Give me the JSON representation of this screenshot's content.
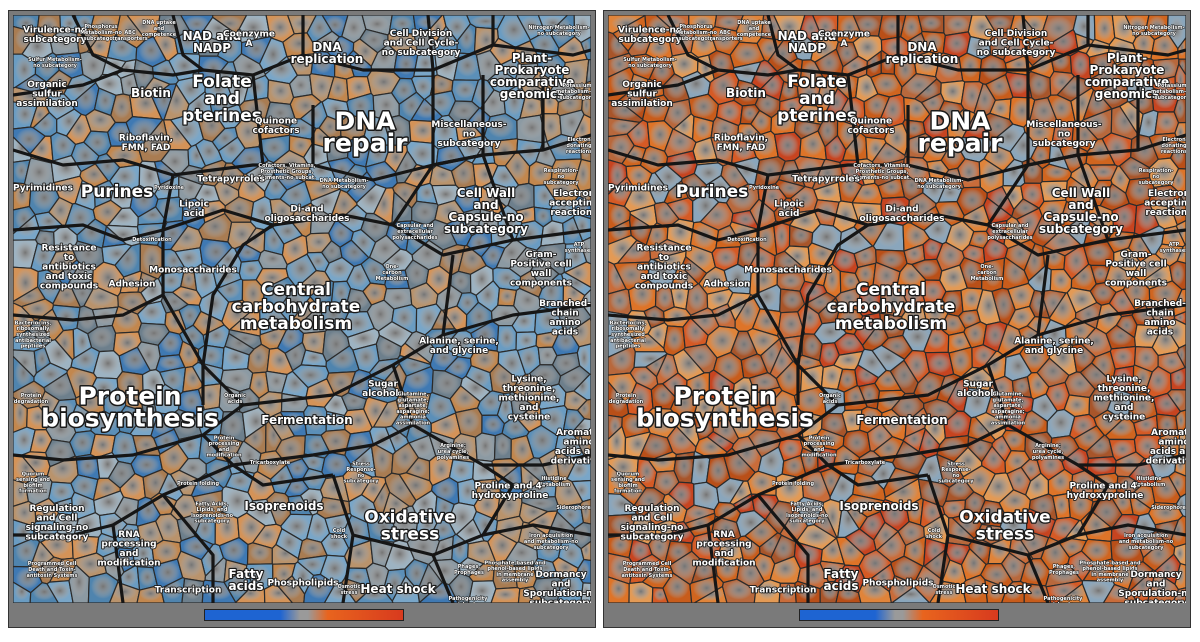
{
  "panels": [
    {
      "id": "left",
      "theme": "blue-orange",
      "legend": "blue-grey-orange"
    },
    {
      "id": "right",
      "theme": "orange-red",
      "legend": "blue-grey-orange"
    }
  ],
  "legend_colors": {
    "blue": "#1e64d2",
    "grey": "#9a9a9a",
    "orange": "#e8641e",
    "red": "#d83a1e"
  },
  "cell_colors": {
    "blue-orange": [
      "#5b8fb8",
      "#6a9cc2",
      "#4f84ae",
      "#79a6c8",
      "#a97c52",
      "#c2874e",
      "#b9936c",
      "#8c9aa3",
      "#6d7f8c",
      "#3f79b3",
      "#d49358",
      "#9db3c2"
    ],
    "orange-red": [
      "#d0651f",
      "#c85c1b",
      "#de7428",
      "#b94f18",
      "#e0843a",
      "#c96c3a",
      "#a8552a",
      "#d55a25",
      "#c74420",
      "#8aa6bc",
      "#e39a55",
      "#b8683c"
    ]
  },
  "labels": [
    {
      "id": "virulence",
      "lines": [
        "Virulence-no",
        "subcategory"
      ],
      "size": "s"
    },
    {
      "id": "phosphorus",
      "lines": [
        "Phosphorus",
        "Metabolism-no",
        "subcategory"
      ],
      "size": "xs"
    },
    {
      "id": "abc-transporters",
      "lines": [
        "ABC",
        "transporters"
      ],
      "size": "xs"
    },
    {
      "id": "dna-uptake",
      "lines": [
        "DNA uptake",
        "and",
        "competence"
      ],
      "size": "xs"
    },
    {
      "id": "nitrogen",
      "lines": [
        "Nitrogen Metabolism-",
        "no subcategory"
      ],
      "size": "xs"
    },
    {
      "id": "sulfur-metabolism",
      "lines": [
        "Sulfur Metabolism-",
        "no subcategory"
      ],
      "size": "xs"
    },
    {
      "id": "nad-nadp",
      "lines": [
        "NAD and",
        "NADP"
      ],
      "size": "m"
    },
    {
      "id": "coenzyme-a",
      "lines": [
        "Coenzyme",
        "A"
      ],
      "size": "s"
    },
    {
      "id": "dna-replication",
      "lines": [
        "DNA",
        "replication"
      ],
      "size": "m"
    },
    {
      "id": "cell-division",
      "lines": [
        "Cell Division",
        "and Cell Cycle-",
        "no subcategory"
      ],
      "size": "s"
    },
    {
      "id": "plant-prokaryote",
      "lines": [
        "Plant-",
        "Prokaryote",
        "comparative",
        "genomics"
      ],
      "size": "m"
    },
    {
      "id": "potassium",
      "lines": [
        "Potassium",
        "metabolism-no",
        "subcategory"
      ],
      "size": "xs"
    },
    {
      "id": "organic-sulfur",
      "lines": [
        "Organic",
        "sulfur",
        "assimilation"
      ],
      "size": "s"
    },
    {
      "id": "biotin",
      "lines": [
        "Biotin"
      ],
      "size": "m"
    },
    {
      "id": "folate",
      "lines": [
        "Folate",
        "and",
        "pterines"
      ],
      "size": "l"
    },
    {
      "id": "dna-repair",
      "lines": [
        "DNA",
        "repair"
      ],
      "size": "xl"
    },
    {
      "id": "quinone",
      "lines": [
        "Quinone",
        "cofactors"
      ],
      "size": "s"
    },
    {
      "id": "miscellaneous",
      "lines": [
        "Miscellaneous-",
        "no",
        "subcategory"
      ],
      "size": "s"
    },
    {
      "id": "electron-donating",
      "lines": [
        "Electron",
        "donating",
        "reactions"
      ],
      "size": "xs"
    },
    {
      "id": "riboflavin",
      "lines": [
        "Riboflavin,",
        "FMN, FAD"
      ],
      "size": "s"
    },
    {
      "id": "cofactors-misc",
      "lines": [
        "Cofactors, Vitamins,",
        "Prosthetic Groups,",
        "Pigments-no subcat."
      ],
      "size": "xs"
    },
    {
      "id": "pyrimidines",
      "lines": [
        "Pyrimidines"
      ],
      "size": "s"
    },
    {
      "id": "purines",
      "lines": [
        "Purines"
      ],
      "size": "l"
    },
    {
      "id": "pyridoxine",
      "lines": [
        "Pyridoxine"
      ],
      "size": "xs"
    },
    {
      "id": "tetrapyrroles",
      "lines": [
        "Tetrapyrroles"
      ],
      "size": "s"
    },
    {
      "id": "dna-metabolism",
      "lines": [
        "DNA Metabolism-",
        "no subcategory"
      ],
      "size": "xs"
    },
    {
      "id": "respiration",
      "lines": [
        "Respiration-",
        "no",
        "subcategory"
      ],
      "size": "xs"
    },
    {
      "id": "electron-accepting",
      "lines": [
        "Electron",
        "accepting",
        "reactions"
      ],
      "size": "s"
    },
    {
      "id": "lipoic-acid",
      "lines": [
        "Lipoic",
        "acid"
      ],
      "size": "s"
    },
    {
      "id": "di-oligosaccharides",
      "lines": [
        "Di-and",
        "oligosaccharides"
      ],
      "size": "s"
    },
    {
      "id": "cell-wall",
      "lines": [
        "Cell Wall",
        "and",
        "Capsule-no",
        "subcategory"
      ],
      "size": "m"
    },
    {
      "id": "capsular",
      "lines": [
        "Capsular and",
        "extracellular",
        "polysaccharides"
      ],
      "size": "xs"
    },
    {
      "id": "atp-synthases",
      "lines": [
        "ATP",
        "synthases"
      ],
      "size": "xs"
    },
    {
      "id": "detoxification",
      "lines": [
        "Detoxification"
      ],
      "size": "xs"
    },
    {
      "id": "resistance",
      "lines": [
        "Resistance",
        "to",
        "antibiotics",
        "and toxic",
        "compounds"
      ],
      "size": "s"
    },
    {
      "id": "adhesion",
      "lines": [
        "Adhesion"
      ],
      "size": "s"
    },
    {
      "id": "monosaccharides",
      "lines": [
        "Monosaccharides"
      ],
      "size": "s"
    },
    {
      "id": "one-carbon",
      "lines": [
        "One-",
        "carbon",
        "Metabolism"
      ],
      "size": "xs"
    },
    {
      "id": "gram-positive",
      "lines": [
        "Gram-",
        "Positive cell",
        "wall",
        "components"
      ],
      "size": "s"
    },
    {
      "id": "central-carbohydrate",
      "lines": [
        "Central",
        "carbohydrate",
        "metabolism"
      ],
      "size": "l"
    },
    {
      "id": "bacteriocins",
      "lines": [
        "Bacteriocins,",
        "ribosomally",
        "synthesized",
        "antibacterial",
        "peptides"
      ],
      "size": "xs"
    },
    {
      "id": "branched-chain",
      "lines": [
        "Branched-",
        "chain",
        "amino",
        "acids"
      ],
      "size": "s"
    },
    {
      "id": "alanine",
      "lines": [
        "Alanine, serine,",
        "and glycine"
      ],
      "size": "s"
    },
    {
      "id": "protein-degradation",
      "lines": [
        "Protein",
        "degradation"
      ],
      "size": "xs"
    },
    {
      "id": "sugar-alcohols",
      "lines": [
        "Sugar",
        "alcohols"
      ],
      "size": "s"
    },
    {
      "id": "organic-acids",
      "lines": [
        "Organic",
        "acids"
      ],
      "size": "xs"
    },
    {
      "id": "protein-biosynthesis",
      "lines": [
        "Protein",
        "biosynthesis"
      ],
      "size": "xl"
    },
    {
      "id": "glutamine",
      "lines": [
        "Glutamine,",
        "glutamate,",
        "aspartate,",
        "asparagine;",
        "ammonia",
        "assimilation"
      ],
      "size": "xs"
    },
    {
      "id": "lysine",
      "lines": [
        "Lysine,",
        "threonine,",
        "methionine,",
        "and",
        "cysteine"
      ],
      "size": "s"
    },
    {
      "id": "fermentation",
      "lines": [
        "Fermentation"
      ],
      "size": "m"
    },
    {
      "id": "aromatic",
      "lines": [
        "Aromatic",
        "amino",
        "acids and",
        "derivatives"
      ],
      "size": "s"
    },
    {
      "id": "protein-processing",
      "lines": [
        "Protein",
        "processing",
        "and",
        "modification"
      ],
      "size": "xs"
    },
    {
      "id": "arginine",
      "lines": [
        "Arginine;",
        "urea cycle,",
        "polyamines"
      ],
      "size": "xs"
    },
    {
      "id": "quorum",
      "lines": [
        "Quorum",
        "sensing and",
        "biofilm",
        "formation"
      ],
      "size": "xs"
    },
    {
      "id": "tricarboxylate",
      "lines": [
        "Tricarboxylate"
      ],
      "size": "xs"
    },
    {
      "id": "stress-response",
      "lines": [
        "Stress",
        "Response-",
        "no",
        "subcategory"
      ],
      "size": "xs"
    },
    {
      "id": "histidine",
      "lines": [
        "Histidine",
        "Metabolism"
      ],
      "size": "xs"
    },
    {
      "id": "protein-folding",
      "lines": [
        "Protein folding"
      ],
      "size": "xs"
    },
    {
      "id": "fatty-acids-olefins",
      "lines": [
        "Fatty Acids,",
        "Lipids, and",
        "Isoprenoids-no",
        "subcategory"
      ],
      "size": "xs"
    },
    {
      "id": "isoprenoids",
      "lines": [
        "Isoprenoids"
      ],
      "size": "m"
    },
    {
      "id": "proline",
      "lines": [
        "Proline and 4-",
        "hydroxyproline"
      ],
      "size": "s"
    },
    {
      "id": "siderophores",
      "lines": [
        "Siderophores"
      ],
      "size": "xs"
    },
    {
      "id": "regulation",
      "lines": [
        "Regulation",
        "and Cell",
        "signaling-no",
        "subcategory"
      ],
      "size": "s"
    },
    {
      "id": "oxidative-stress",
      "lines": [
        "Oxidative",
        "stress"
      ],
      "size": "l"
    },
    {
      "id": "rna-processing",
      "lines": [
        "RNA",
        "processing",
        "and",
        "modification"
      ],
      "size": "s"
    },
    {
      "id": "cold-shock",
      "lines": [
        "Cold",
        "shock"
      ],
      "size": "xs"
    },
    {
      "id": "iron-acquisition",
      "lines": [
        "Iron acquisition",
        "and metabolism-no",
        "subcategory"
      ],
      "size": "xs"
    },
    {
      "id": "programmed-cell-death",
      "lines": [
        "Programmed Cell",
        "Death and Toxin-",
        "antitoxin Systems"
      ],
      "size": "xs"
    },
    {
      "id": "phages",
      "lines": [
        "Phages,",
        "Prophages"
      ],
      "size": "xs"
    },
    {
      "id": "phosphate-induced",
      "lines": [
        "Phosphate-based and",
        "phenol-based lipids",
        "in membrane",
        "assembly"
      ],
      "size": "xs"
    },
    {
      "id": "fatty-acids",
      "lines": [
        "Fatty",
        "acids"
      ],
      "size": "m"
    },
    {
      "id": "phospholipids",
      "lines": [
        "Phospholipids"
      ],
      "size": "s"
    },
    {
      "id": "osmotic-stress",
      "lines": [
        "Osmotic",
        "stress"
      ],
      "size": "xs"
    },
    {
      "id": "heat-shock",
      "lines": [
        "Heat shock"
      ],
      "size": "m"
    },
    {
      "id": "transcription",
      "lines": [
        "Transcription"
      ],
      "size": "s"
    },
    {
      "id": "pathogenicity",
      "lines": [
        "Pathogenicity",
        "islands"
      ],
      "size": "xs"
    },
    {
      "id": "dormancy",
      "lines": [
        "Dormancy",
        "and",
        "Sporulation-no",
        "subcategory"
      ],
      "size": "s"
    }
  ]
}
